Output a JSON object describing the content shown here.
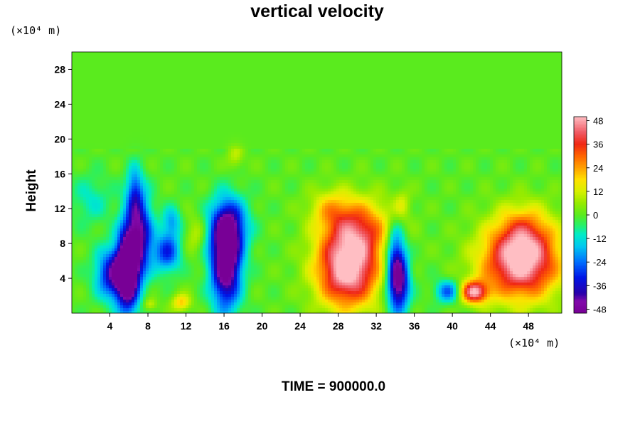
{
  "chart_data": {
    "type": "heatmap",
    "title": "vertical velocity",
    "ylabel": "Height",
    "x_unit": "(×10⁴ m)",
    "y_unit": "(×10⁴ m)",
    "x_ticks": [
      4,
      8,
      12,
      16,
      20,
      24,
      28,
      32,
      36,
      40,
      44,
      48
    ],
    "y_ticks": [
      4,
      8,
      12,
      16,
      20,
      24,
      28
    ],
    "xlim": [
      0,
      51.5
    ],
    "ylim": [
      0,
      30
    ],
    "colorbar": {
      "ticks": [
        48,
        36,
        24,
        12,
        0,
        -12,
        -24,
        -36,
        -48
      ],
      "range": [
        -50,
        50
      ]
    },
    "features": [
      {
        "x": 4.5,
        "y": 4.5,
        "sx": 1.3,
        "sy": 2.0,
        "amp": -42
      },
      {
        "x": 5.9,
        "y": 5.2,
        "sx": 0.8,
        "sy": 3.6,
        "amp": -58
      },
      {
        "x": 7.2,
        "y": 9.0,
        "sx": 0.9,
        "sy": 3.2,
        "amp": -40
      },
      {
        "x": 6.6,
        "y": 14.0,
        "sx": 0.6,
        "sy": 2.0,
        "amp": -22
      },
      {
        "x": 10.0,
        "y": 7.0,
        "sx": 1.0,
        "sy": 1.6,
        "amp": -30
      },
      {
        "x": 10.5,
        "y": 10.5,
        "sx": 0.7,
        "sy": 1.2,
        "amp": -18
      },
      {
        "x": 16.2,
        "y": 5.8,
        "sx": 1.1,
        "sy": 3.6,
        "amp": -58
      },
      {
        "x": 16.5,
        "y": 10.0,
        "sx": 1.4,
        "sy": 2.2,
        "amp": -32
      },
      {
        "x": 34.3,
        "y": 3.5,
        "sx": 0.8,
        "sy": 2.4,
        "amp": -52
      },
      {
        "x": 34.0,
        "y": 7.5,
        "sx": 0.7,
        "sy": 2.2,
        "amp": -25
      },
      {
        "x": 39.5,
        "y": 2.5,
        "sx": 0.9,
        "sy": 0.9,
        "amp": -26
      },
      {
        "x": 2.0,
        "y": 13.0,
        "sx": 1.5,
        "sy": 2.0,
        "amp": -10
      },
      {
        "x": 29.0,
        "y": 5.0,
        "sx": 2.3,
        "sy": 3.1,
        "amp": 54
      },
      {
        "x": 30.2,
        "y": 9.8,
        "sx": 2.5,
        "sy": 2.4,
        "amp": 28
      },
      {
        "x": 27.2,
        "y": 12.0,
        "sx": 1.6,
        "sy": 1.6,
        "amp": 14
      },
      {
        "x": 47.2,
        "y": 5.8,
        "sx": 2.9,
        "sy": 3.0,
        "amp": 52
      },
      {
        "x": 47.5,
        "y": 9.5,
        "sx": 2.0,
        "sy": 2.2,
        "amp": 18
      },
      {
        "x": 42.3,
        "y": 2.4,
        "sx": 1.0,
        "sy": 0.9,
        "amp": 44
      },
      {
        "x": 11.5,
        "y": 1.2,
        "sx": 0.7,
        "sy": 0.7,
        "amp": 20
      },
      {
        "x": 8.2,
        "y": 1.0,
        "sx": 0.5,
        "sy": 0.5,
        "amp": 12
      },
      {
        "x": 13.0,
        "y": 9.0,
        "sx": 0.8,
        "sy": 1.5,
        "amp": 10
      },
      {
        "x": 17.2,
        "y": 18.0,
        "sx": 0.6,
        "sy": 1.0,
        "amp": 10
      },
      {
        "x": 34.7,
        "y": 12.5,
        "sx": 0.6,
        "sy": 1.2,
        "amp": 10
      }
    ]
  },
  "time_label": "TIME = 900000.0"
}
